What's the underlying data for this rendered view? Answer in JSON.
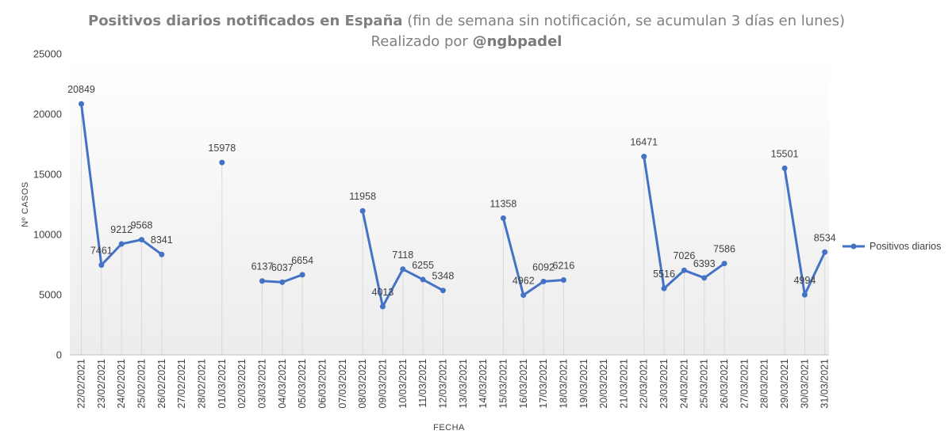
{
  "chart_data": {
    "type": "line",
    "title": {
      "bold": "Positivos diarios notificados en España",
      "rest": " (fin de semana sin notificación, se acumulan 3 días en lunes)",
      "line2_prefix": "Realizado por ",
      "line2_handle": "@ngbpadel"
    },
    "xlabel": "FECHA",
    "ylabel": "Nº  CASOS",
    "ylim": [
      0,
      25000
    ],
    "yticks": [
      0,
      5000,
      10000,
      15000,
      20000,
      25000
    ],
    "ytick_labels": [
      "0",
      "5000",
      "10000",
      "15000",
      "20000",
      "25000"
    ],
    "legend": {
      "position": "right",
      "label": "Positivos diarios"
    },
    "colors": {
      "series": "#4472C4",
      "drop": "#d9d9d9",
      "axis": "#bfbfbf"
    },
    "categories": [
      "22/02/2021",
      "23/02/2021",
      "24/02/2021",
      "25/02/2021",
      "26/02/2021",
      "27/02/2021",
      "28/02/2021",
      "01/03/2021",
      "02/03/2021",
      "03/03/2021",
      "04/03/2021",
      "05/03/2021",
      "06/03/2021",
      "07/03/2021",
      "08/03/2021",
      "09/03/2021",
      "10/03/2021",
      "11/03/2021",
      "12/03/2021",
      "13/03/2021",
      "14/03/2021",
      "15/03/2021",
      "16/03/2021",
      "17/03/2021",
      "18/03/2021",
      "19/03/2021",
      "20/03/2021",
      "21/03/2021",
      "22/03/2021",
      "23/03/2021",
      "24/03/2021",
      "25/03/2021",
      "26/03/2021",
      "27/03/2021",
      "28/03/2021",
      "29/03/2021",
      "30/03/2021",
      "31/03/2021"
    ],
    "series": [
      {
        "name": "Positivos diarios",
        "values": [
          20849,
          7461,
          9212,
          9568,
          8341,
          null,
          null,
          15978,
          null,
          6137,
          6037,
          6654,
          null,
          null,
          11958,
          4013,
          7118,
          6255,
          5348,
          null,
          null,
          11358,
          4962,
          6092,
          6216,
          null,
          null,
          null,
          16471,
          5516,
          7026,
          6393,
          7586,
          null,
          null,
          15501,
          4994,
          8534
        ]
      }
    ]
  }
}
